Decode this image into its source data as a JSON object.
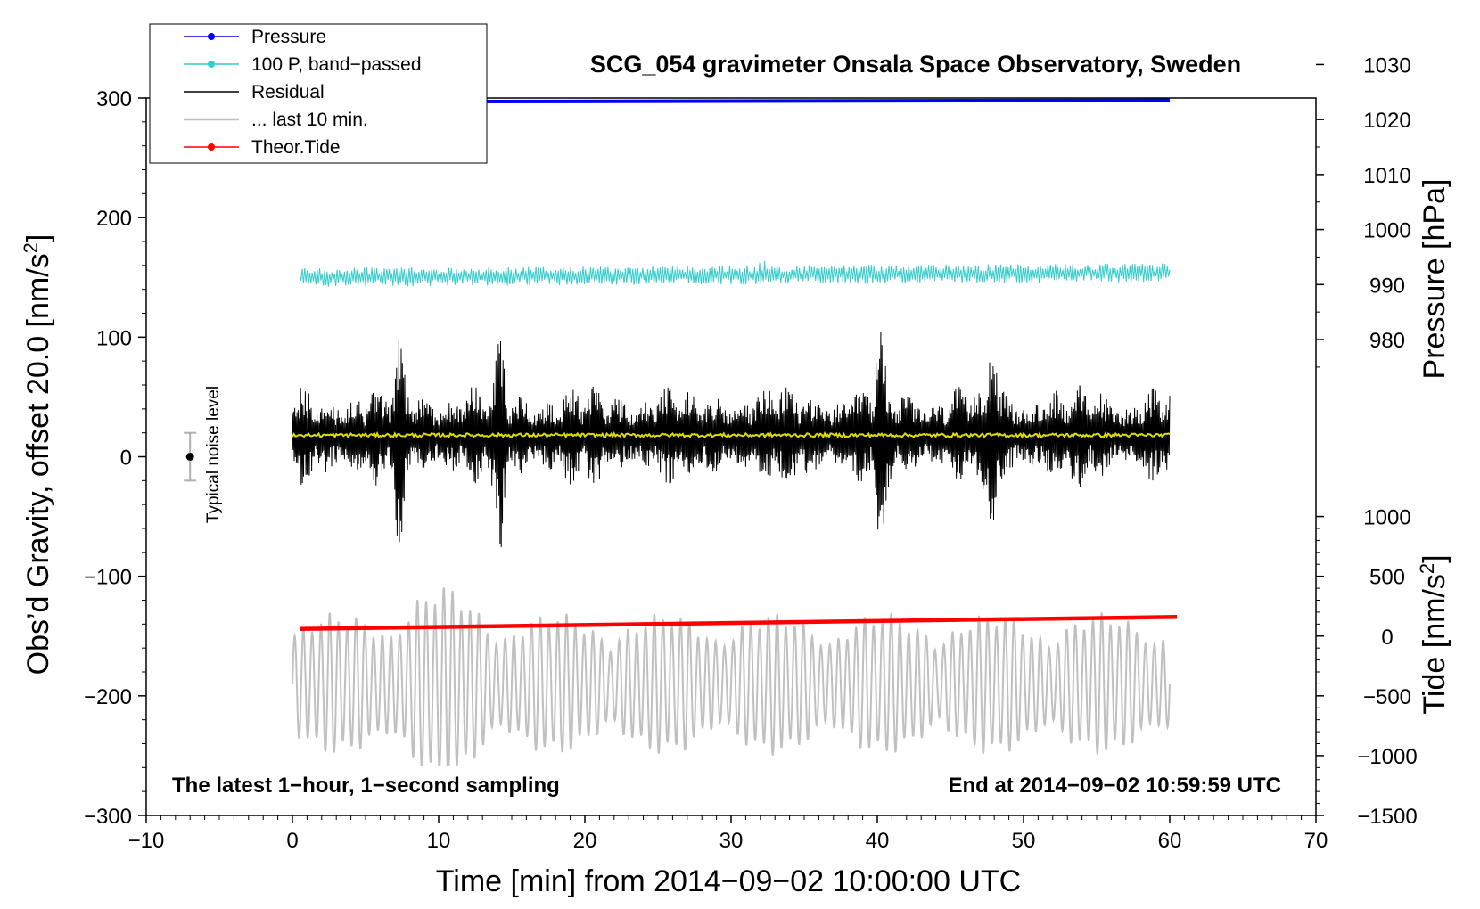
{
  "chart_data": {
    "type": "line",
    "title": "SCG_054 gravimeter Onsala Space Observatory, Sweden",
    "xlabel": "Time [min] from 2014−09−02 10:00:00 UTC",
    "ylabel_left": "Obs’d Gravity, offset 20.0 [nm/s",
    "ylabel_left_sup": "2",
    "ylabel_left_end": "]",
    "ylabel_right_pressure": "Pressure [hPa]",
    "ylabel_right_tide": "Tide [nm/s",
    "ylabel_right_tide_sup": "2",
    "ylabel_right_tide_end": "]",
    "xlim": [
      -10,
      70
    ],
    "ylim_left": [
      -300,
      300
    ],
    "x_ticks": [
      {
        "value": -10,
        "label": "−10"
      },
      {
        "value": 0,
        "label": "0"
      },
      {
        "value": 10,
        "label": "10"
      },
      {
        "value": 20,
        "label": "20"
      },
      {
        "value": 30,
        "label": "30"
      },
      {
        "value": 40,
        "label": "40"
      },
      {
        "value": 50,
        "label": "50"
      },
      {
        "value": 60,
        "label": "60"
      },
      {
        "value": 70,
        "label": "70"
      }
    ],
    "y_left_ticks": [
      {
        "value": 300,
        "label": "300"
      },
      {
        "value": 200,
        "label": "200"
      },
      {
        "value": 100,
        "label": "100"
      },
      {
        "value": 0,
        "label": "0"
      },
      {
        "value": -100,
        "label": "−100"
      },
      {
        "value": -200,
        "label": "−200"
      },
      {
        "value": -300,
        "label": "−300"
      }
    ],
    "pressure_axis": {
      "ticks": [
        {
          "value": 1030,
          "label": "1030"
        },
        {
          "value": 1020,
          "label": "1020"
        },
        {
          "value": 1010,
          "label": "1010"
        },
        {
          "value": 1000,
          "label": "1000"
        },
        {
          "value": 990,
          "label": "990"
        },
        {
          "value": 980,
          "label": "980"
        }
      ],
      "left_value_at_1000": 190,
      "left_units_per_hpa": 4.6
    },
    "tide_axis": {
      "ticks": [
        {
          "value": 1000,
          "label": "1000"
        },
        {
          "value": 500,
          "label": "500"
        },
        {
          "value": 0,
          "label": "0"
        },
        {
          "value": -500,
          "label": "−500"
        },
        {
          "value": -1000,
          "label": "−1000"
        },
        {
          "value": -1500,
          "label": "−1500"
        }
      ],
      "left_value_at_0": -150,
      "left_units_per_nms2": 0.1
    },
    "series": [
      {
        "name": "Pressure",
        "color": "#0000ff",
        "kind": "line-thick",
        "x": [
          0,
          60
        ],
        "y_hpa": [
          1023.2,
          1023.5
        ]
      },
      {
        "name": "100 P, band−passed",
        "color": "#33cccc",
        "kind": "noise",
        "x_range": [
          0.5,
          60
        ],
        "center": 150,
        "amplitude": 8
      },
      {
        "name": "Residual",
        "color": "#000000",
        "kind": "noise",
        "x_range": [
          0,
          60
        ],
        "center": 18,
        "amplitude": 45,
        "peaks": [
          {
            "x": 7.3,
            "max": 118,
            "min": -63
          },
          {
            "x": 14.2,
            "max": 113,
            "min": -80
          },
          {
            "x": 40.2,
            "max": 107,
            "min": -73
          },
          {
            "x": 47.9,
            "max": 104,
            "min": -75
          }
        ]
      },
      {
        "name": "... last 10 min.",
        "color": "#c0c0c0",
        "kind": "oscillation",
        "x_range": [
          0,
          60
        ],
        "center": -190,
        "amplitude": 60,
        "max": -108,
        "min": -258
      },
      {
        "name": "Theor.Tide",
        "color": "#ff0000",
        "kind": "line-thick",
        "x": [
          0.5,
          60.5
        ],
        "y_tide": [
          60,
          160
        ]
      },
      {
        "name": "Mean",
        "color": "#dddd00",
        "kind": "line-jitter",
        "x": [
          0,
          60
        ],
        "y": [
          18,
          18
        ]
      }
    ],
    "noise_bar": {
      "label": "Typical noise level",
      "x": -7,
      "center": 0,
      "half_range": 20
    },
    "annotations": {
      "left": "The latest 1−hour, 1−second sampling",
      "right": "End at 2014−09−02 10:59:59 UTC"
    },
    "legend": [
      {
        "label": "Pressure",
        "color": "#0000ff",
        "marker": true
      },
      {
        "label": "100 P, band−passed",
        "color": "#33cccc",
        "marker": true
      },
      {
        "label": "Residual",
        "color": "#000000",
        "marker": false
      },
      {
        "label": "... last 10 min.",
        "color": "#c0c0c0",
        "marker": false
      },
      {
        "label": "Theor.Tide",
        "color": "#ff0000",
        "marker": true
      }
    ]
  }
}
